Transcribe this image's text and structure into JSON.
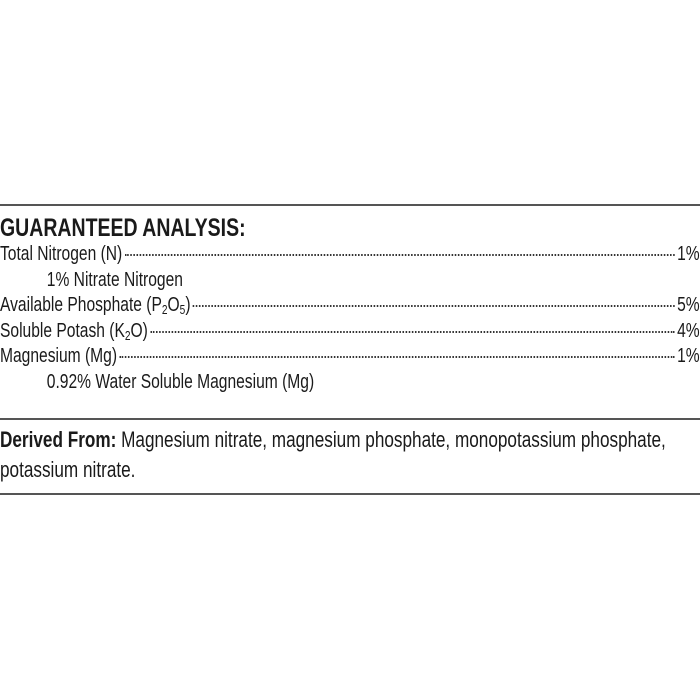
{
  "heading": "GUARANTEED ANALYSIS:",
  "rows": [
    {
      "label": "Total Nitrogen (N)",
      "value": "1%",
      "sub": "1% Nitrate Nitrogen"
    },
    {
      "label_pre": "Available Phosphate (P",
      "sub1": "2",
      "mid": "O",
      "sub2": "5",
      "label_post": ")",
      "value": "5%"
    },
    {
      "label_pre": "Soluble Potash (K",
      "sub1": "2",
      "label_post": "O)",
      "value": "4%"
    },
    {
      "label": "Magnesium (Mg)",
      "value": "1%",
      "sub": "0.92% Water Soluble Magnesium (Mg)"
    }
  ],
  "derived": {
    "label": "Derived From:",
    "text": " Magnesium nitrate, magnesium phosphate, monopotassium phosphate, potassium nitrate."
  }
}
